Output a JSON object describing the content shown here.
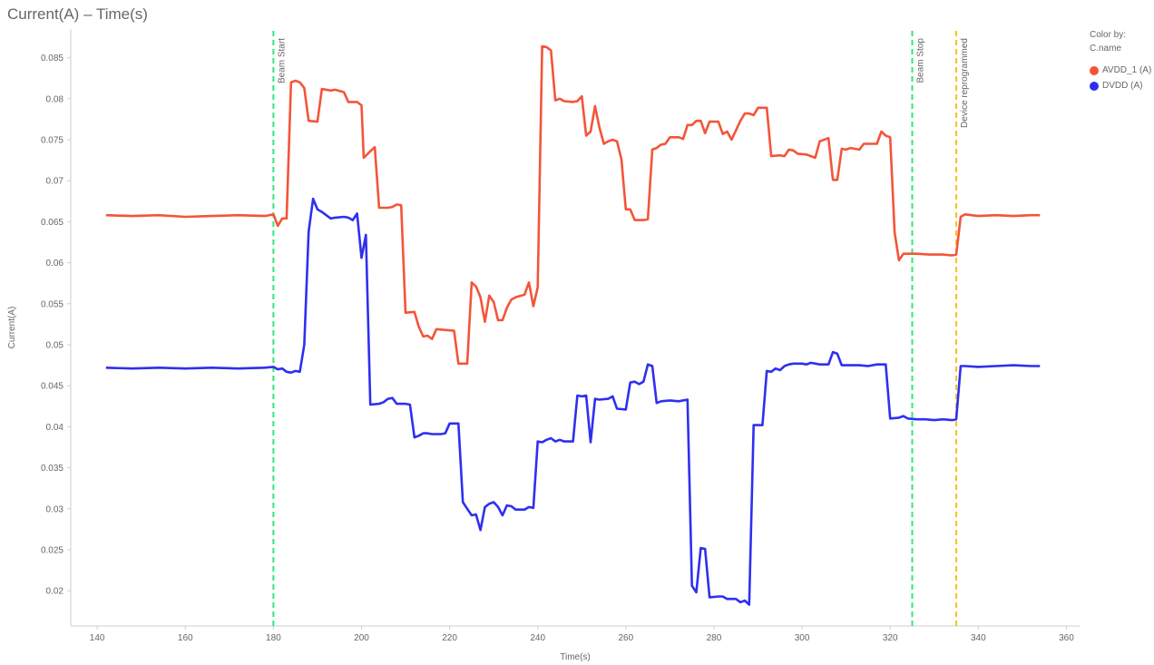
{
  "title": "Current(A) – Time(s)",
  "legend": {
    "title": "Color by:",
    "subtitle": "C.name"
  },
  "chart_data": {
    "type": "line",
    "title": "Current(A) – Time(s)",
    "xlabel": "Time(s)",
    "ylabel": "Current(A)",
    "xlim": [
      134,
      363
    ],
    "ylim": [
      0.0157,
      0.0885
    ],
    "x_ticks": [
      140,
      160,
      180,
      200,
      220,
      240,
      260,
      280,
      300,
      320,
      340,
      360
    ],
    "y_ticks": [
      0.02,
      0.025,
      0.03,
      0.035,
      0.04,
      0.045,
      0.05,
      0.055,
      0.06,
      0.065,
      0.07,
      0.075,
      0.08,
      0.085
    ],
    "grid": false,
    "legend_position": "top-right",
    "markers": [
      {
        "x": 180,
        "label": "Beam Start",
        "color": "#2ee87a"
      },
      {
        "x": 325,
        "label": "Beam Stop",
        "color": "#2ee87a"
      },
      {
        "x": 335,
        "label": "Device reprogrammed",
        "color": "#f5c518"
      }
    ],
    "series": [
      {
        "name": "AVDD_1 (A)",
        "color": "#f4543a",
        "points": [
          [
            142,
            0.0658
          ],
          [
            148,
            0.0657
          ],
          [
            154,
            0.0658
          ],
          [
            160,
            0.0656
          ],
          [
            166,
            0.0657
          ],
          [
            172,
            0.0658
          ],
          [
            178,
            0.0657
          ],
          [
            180,
            0.0659
          ],
          [
            181,
            0.0645
          ],
          [
            182,
            0.0654
          ],
          [
            183,
            0.0654
          ],
          [
            184,
            0.082
          ],
          [
            185,
            0.0822
          ],
          [
            186,
            0.082
          ],
          [
            187,
            0.0813
          ],
          [
            188,
            0.0773
          ],
          [
            190,
            0.0772
          ],
          [
            191,
            0.0812
          ],
          [
            193,
            0.081
          ],
          [
            194,
            0.0811
          ],
          [
            196,
            0.0808
          ],
          [
            197,
            0.0796
          ],
          [
            199,
            0.0796
          ],
          [
            200,
            0.0792
          ],
          [
            200.5,
            0.0728
          ],
          [
            202,
            0.0736
          ],
          [
            203,
            0.0741
          ],
          [
            204,
            0.0667
          ],
          [
            206,
            0.0667
          ],
          [
            207,
            0.0668
          ],
          [
            208,
            0.0671
          ],
          [
            209,
            0.067
          ],
          [
            210,
            0.0539
          ],
          [
            212,
            0.054
          ],
          [
            213,
            0.0522
          ],
          [
            214,
            0.051
          ],
          [
            215,
            0.0511
          ],
          [
            216,
            0.0507
          ],
          [
            217,
            0.0519
          ],
          [
            219,
            0.0518
          ],
          [
            221,
            0.0517
          ],
          [
            222,
            0.0477
          ],
          [
            224,
            0.0477
          ],
          [
            225,
            0.0576
          ],
          [
            226,
            0.0571
          ],
          [
            227,
            0.0558
          ],
          [
            228,
            0.0528
          ],
          [
            229,
            0.056
          ],
          [
            230,
            0.0552
          ],
          [
            231,
            0.053
          ],
          [
            232,
            0.053
          ],
          [
            233,
            0.0545
          ],
          [
            234,
            0.0555
          ],
          [
            235,
            0.0558
          ],
          [
            237,
            0.0561
          ],
          [
            238,
            0.0576
          ],
          [
            239,
            0.0547
          ],
          [
            240,
            0.057
          ],
          [
            241,
            0.0864
          ],
          [
            242,
            0.0863
          ],
          [
            243,
            0.0859
          ],
          [
            244,
            0.0798
          ],
          [
            245,
            0.08
          ],
          [
            246,
            0.0797
          ],
          [
            248,
            0.0796
          ],
          [
            249,
            0.0797
          ],
          [
            250,
            0.0803
          ],
          [
            251,
            0.0755
          ],
          [
            252,
            0.076
          ],
          [
            253,
            0.0791
          ],
          [
            254,
            0.0765
          ],
          [
            255,
            0.0745
          ],
          [
            256,
            0.0748
          ],
          [
            257,
            0.075
          ],
          [
            258,
            0.0748
          ],
          [
            259,
            0.0726
          ],
          [
            260,
            0.0665
          ],
          [
            261,
            0.0665
          ],
          [
            262,
            0.0652
          ],
          [
            264,
            0.0652
          ],
          [
            265,
            0.0653
          ],
          [
            266,
            0.0738
          ],
          [
            267,
            0.074
          ],
          [
            268,
            0.0744
          ],
          [
            269,
            0.0745
          ],
          [
            270,
            0.0753
          ],
          [
            272,
            0.0753
          ],
          [
            273,
            0.0751
          ],
          [
            274,
            0.0768
          ],
          [
            275,
            0.0768
          ],
          [
            276,
            0.0773
          ],
          [
            277,
            0.0773
          ],
          [
            278,
            0.0758
          ],
          [
            279,
            0.0772
          ],
          [
            281,
            0.0772
          ],
          [
            282,
            0.0757
          ],
          [
            283,
            0.076
          ],
          [
            284,
            0.075
          ],
          [
            286,
            0.0773
          ],
          [
            287,
            0.0782
          ],
          [
            288,
            0.0782
          ],
          [
            289,
            0.078
          ],
          [
            290,
            0.0789
          ],
          [
            292,
            0.0789
          ],
          [
            293,
            0.073
          ],
          [
            295,
            0.0731
          ],
          [
            296,
            0.073
          ],
          [
            297,
            0.0738
          ],
          [
            298,
            0.0737
          ],
          [
            299,
            0.0733
          ],
          [
            301,
            0.0732
          ],
          [
            303,
            0.0728
          ],
          [
            304,
            0.0748
          ],
          [
            306,
            0.0752
          ],
          [
            307,
            0.0701
          ],
          [
            308,
            0.0701
          ],
          [
            309,
            0.0739
          ],
          [
            310,
            0.0738
          ],
          [
            311,
            0.074
          ],
          [
            313,
            0.0738
          ],
          [
            314,
            0.0745
          ],
          [
            317,
            0.0745
          ],
          [
            318,
            0.076
          ],
          [
            319,
            0.0755
          ],
          [
            320,
            0.0753
          ],
          [
            321,
            0.0637
          ],
          [
            322,
            0.0603
          ],
          [
            323,
            0.0611
          ],
          [
            326,
            0.0611
          ],
          [
            329,
            0.061
          ],
          [
            332,
            0.061
          ],
          [
            334,
            0.0609
          ],
          [
            335,
            0.061
          ],
          [
            336,
            0.0656
          ],
          [
            337,
            0.0659
          ],
          [
            340,
            0.0657
          ],
          [
            344,
            0.0658
          ],
          [
            348,
            0.0657
          ],
          [
            352,
            0.0658
          ],
          [
            354,
            0.0658
          ]
        ]
      },
      {
        "name": "DVDD (A)",
        "color": "#2f2ff0",
        "points": [
          [
            142,
            0.0472
          ],
          [
            148,
            0.0471
          ],
          [
            154,
            0.0472
          ],
          [
            160,
            0.0471
          ],
          [
            166,
            0.0472
          ],
          [
            172,
            0.0471
          ],
          [
            178,
            0.0472
          ],
          [
            180,
            0.0473
          ],
          [
            181,
            0.047
          ],
          [
            182,
            0.0471
          ],
          [
            183,
            0.0467
          ],
          [
            184,
            0.0466
          ],
          [
            185,
            0.0468
          ],
          [
            186,
            0.0467
          ],
          [
            187,
            0.05
          ],
          [
            188,
            0.0638
          ],
          [
            189,
            0.0678
          ],
          [
            190,
            0.0665
          ],
          [
            191,
            0.0662
          ],
          [
            192,
            0.0658
          ],
          [
            193,
            0.0654
          ],
          [
            194,
            0.0655
          ],
          [
            196,
            0.0656
          ],
          [
            197,
            0.0655
          ],
          [
            198,
            0.0652
          ],
          [
            199,
            0.066
          ],
          [
            200,
            0.0606
          ],
          [
            201,
            0.0634
          ],
          [
            202,
            0.0427
          ],
          [
            204,
            0.0428
          ],
          [
            205,
            0.043
          ],
          [
            206,
            0.0434
          ],
          [
            207,
            0.0435
          ],
          [
            208,
            0.0428
          ],
          [
            210,
            0.0428
          ],
          [
            211,
            0.0427
          ],
          [
            212,
            0.0387
          ],
          [
            213,
            0.0389
          ],
          [
            214,
            0.0392
          ],
          [
            215,
            0.0392
          ],
          [
            216,
            0.0391
          ],
          [
            218,
            0.0391
          ],
          [
            219,
            0.0392
          ],
          [
            220,
            0.0404
          ],
          [
            222,
            0.0404
          ],
          [
            223,
            0.0308
          ],
          [
            224,
            0.03
          ],
          [
            225,
            0.0292
          ],
          [
            226,
            0.0293
          ],
          [
            227,
            0.0274
          ],
          [
            228,
            0.0302
          ],
          [
            229,
            0.0306
          ],
          [
            230,
            0.0308
          ],
          [
            231,
            0.0302
          ],
          [
            232,
            0.0292
          ],
          [
            233,
            0.0304
          ],
          [
            234,
            0.0303
          ],
          [
            235,
            0.0299
          ],
          [
            236,
            0.0299
          ],
          [
            237,
            0.0299
          ],
          [
            238,
            0.0302
          ],
          [
            239,
            0.0301
          ],
          [
            240,
            0.0382
          ],
          [
            241,
            0.0381
          ],
          [
            242,
            0.0384
          ],
          [
            243,
            0.0386
          ],
          [
            244,
            0.0382
          ],
          [
            245,
            0.0384
          ],
          [
            246,
            0.0382
          ],
          [
            247,
            0.0382
          ],
          [
            248,
            0.0382
          ],
          [
            249,
            0.0438
          ],
          [
            250,
            0.0437
          ],
          [
            251,
            0.0438
          ],
          [
            252,
            0.0381
          ],
          [
            253,
            0.0434
          ],
          [
            254,
            0.0433
          ],
          [
            256,
            0.0434
          ],
          [
            257,
            0.0437
          ],
          [
            258,
            0.0422
          ],
          [
            260,
            0.0421
          ],
          [
            261,
            0.0454
          ],
          [
            262,
            0.0455
          ],
          [
            263,
            0.0452
          ],
          [
            264,
            0.0455
          ],
          [
            265,
            0.0476
          ],
          [
            266,
            0.0474
          ],
          [
            267,
            0.0429
          ],
          [
            268,
            0.0431
          ],
          [
            270,
            0.0432
          ],
          [
            272,
            0.0431
          ],
          [
            274,
            0.0433
          ],
          [
            275,
            0.0206
          ],
          [
            276,
            0.0198
          ],
          [
            277,
            0.0252
          ],
          [
            278,
            0.0251
          ],
          [
            279,
            0.0192
          ],
          [
            281,
            0.0193
          ],
          [
            282,
            0.0193
          ],
          [
            283,
            0.019
          ],
          [
            285,
            0.019
          ],
          [
            286,
            0.0186
          ],
          [
            287,
            0.0188
          ],
          [
            288,
            0.0183
          ],
          [
            289,
            0.0402
          ],
          [
            291,
            0.0402
          ],
          [
            292,
            0.0468
          ],
          [
            293,
            0.0467
          ],
          [
            294,
            0.0471
          ],
          [
            295,
            0.0469
          ],
          [
            296,
            0.0474
          ],
          [
            297,
            0.0476
          ],
          [
            298,
            0.0477
          ],
          [
            300,
            0.0477
          ],
          [
            301,
            0.0476
          ],
          [
            302,
            0.0478
          ],
          [
            304,
            0.0476
          ],
          [
            306,
            0.0476
          ],
          [
            307,
            0.0491
          ],
          [
            308,
            0.0489
          ],
          [
            309,
            0.0475
          ],
          [
            311,
            0.0475
          ],
          [
            313,
            0.0475
          ],
          [
            315,
            0.0474
          ],
          [
            317,
            0.0476
          ],
          [
            319,
            0.0476
          ],
          [
            320,
            0.041
          ],
          [
            322,
            0.0411
          ],
          [
            323,
            0.0413
          ],
          [
            324,
            0.041
          ],
          [
            326,
            0.0409
          ],
          [
            328,
            0.0409
          ],
          [
            330,
            0.0408
          ],
          [
            332,
            0.0409
          ],
          [
            334,
            0.0408
          ],
          [
            335,
            0.0409
          ],
          [
            336,
            0.0474
          ],
          [
            337,
            0.0474
          ],
          [
            340,
            0.0473
          ],
          [
            344,
            0.0474
          ],
          [
            348,
            0.0475
          ],
          [
            352,
            0.0474
          ],
          [
            354,
            0.0474
          ]
        ]
      }
    ]
  }
}
